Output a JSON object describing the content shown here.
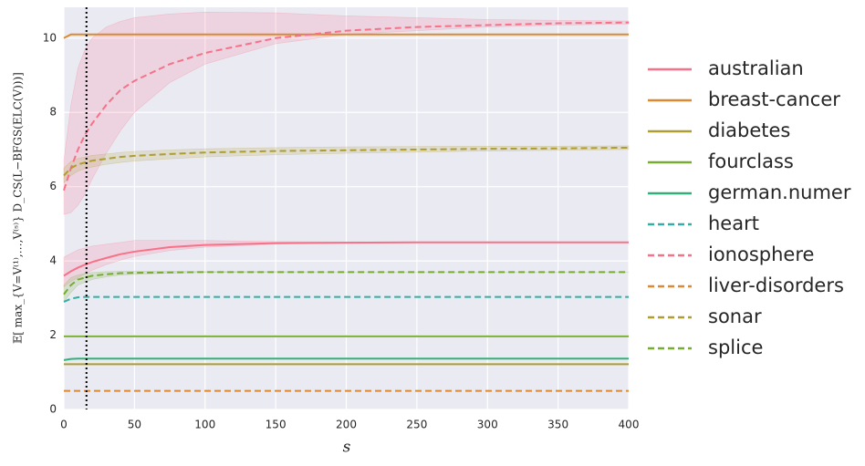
{
  "chart_data": {
    "type": "line",
    "x_label": "s",
    "y_label": "𝔼[ max_{V=V⁽¹⁾,…,V⁽ˢ⁾} D_CS(L−BFGS(ELC(V)))]",
    "x": [
      0,
      5,
      10,
      15,
      20,
      30,
      40,
      50,
      75,
      100,
      150,
      200,
      250,
      300,
      350,
      400
    ],
    "xlim": [
      0,
      400
    ],
    "xticks": [
      0,
      50,
      100,
      150,
      200,
      250,
      300,
      350,
      400
    ],
    "ylim": [
      0,
      10.83
    ],
    "yticks": [
      0,
      2,
      4,
      6,
      8,
      10
    ],
    "grid": true,
    "legend": "right",
    "vline": 16,
    "series": [
      {
        "name": "australian",
        "color": "#f77189",
        "dashed": false,
        "values": [
          3.6,
          3.72,
          3.82,
          3.9,
          3.97,
          4.08,
          4.18,
          4.25,
          4.37,
          4.43,
          4.48,
          4.49,
          4.5,
          4.5,
          4.5,
          4.5
        ],
        "lower": [
          3.3,
          3.45,
          3.55,
          3.65,
          3.75,
          3.9,
          4.02,
          4.12,
          4.28,
          4.37,
          4.45,
          4.48,
          4.49,
          4.5,
          4.5,
          4.5
        ],
        "upper": [
          4.1,
          4.2,
          4.3,
          4.35,
          4.4,
          4.45,
          4.5,
          4.55,
          4.55,
          4.55,
          4.52,
          4.51,
          4.51,
          4.5,
          4.5,
          4.5
        ]
      },
      {
        "name": "breast-cancer",
        "color": "#dc8932",
        "dashed": false,
        "values": [
          10.0,
          10.1,
          10.1,
          10.1,
          10.1,
          10.1,
          10.1,
          10.1,
          10.1,
          10.1,
          10.1,
          10.1,
          10.1,
          10.1,
          10.1,
          10.1
        ]
      },
      {
        "name": "diabetes",
        "color": "#ae9d31",
        "dashed": false,
        "values": [
          1.22,
          1.22,
          1.22,
          1.22,
          1.22,
          1.22,
          1.22,
          1.22,
          1.22,
          1.22,
          1.22,
          1.22,
          1.22,
          1.22,
          1.22,
          1.22
        ]
      },
      {
        "name": "fourclass",
        "color": "#77ab31",
        "dashed": false,
        "values": [
          1.97,
          1.97,
          1.97,
          1.97,
          1.97,
          1.97,
          1.97,
          1.97,
          1.97,
          1.97,
          1.97,
          1.97,
          1.97,
          1.97,
          1.97,
          1.97
        ]
      },
      {
        "name": "german.numer",
        "color": "#33b07a",
        "dashed": false,
        "values": [
          1.33,
          1.36,
          1.37,
          1.37,
          1.37,
          1.37,
          1.37,
          1.37,
          1.37,
          1.37,
          1.37,
          1.37,
          1.37,
          1.37,
          1.37,
          1.37
        ]
      },
      {
        "name": "heart",
        "color": "#36ada4",
        "dashed": true,
        "values": [
          2.9,
          2.98,
          3.02,
          3.03,
          3.03,
          3.03,
          3.03,
          3.03,
          3.03,
          3.03,
          3.03,
          3.03,
          3.03,
          3.03,
          3.03,
          3.03
        ]
      },
      {
        "name": "ionosphere",
        "color": "#f77189",
        "dashed": true,
        "values": [
          5.9,
          6.5,
          7.0,
          7.4,
          7.7,
          8.2,
          8.6,
          8.85,
          9.3,
          9.6,
          10.0,
          10.2,
          10.3,
          10.35,
          10.4,
          10.42
        ],
        "lower": [
          5.25,
          5.3,
          5.5,
          5.8,
          6.2,
          6.9,
          7.5,
          8.0,
          8.8,
          9.3,
          9.85,
          10.1,
          10.2,
          10.3,
          10.35,
          10.38
        ],
        "upper": [
          6.7,
          8.2,
          9.2,
          9.7,
          10.0,
          10.3,
          10.45,
          10.55,
          10.65,
          10.7,
          10.68,
          10.6,
          10.55,
          10.5,
          10.48,
          10.46
        ]
      },
      {
        "name": "liver-disorders",
        "color": "#dc8932",
        "dashed": true,
        "values": [
          0.5,
          0.5,
          0.5,
          0.5,
          0.5,
          0.5,
          0.5,
          0.5,
          0.5,
          0.5,
          0.5,
          0.5,
          0.5,
          0.5,
          0.5,
          0.5
        ]
      },
      {
        "name": "sonar",
        "color": "#ae9d31",
        "dashed": true,
        "values": [
          6.3,
          6.5,
          6.6,
          6.65,
          6.7,
          6.75,
          6.8,
          6.83,
          6.88,
          6.92,
          6.96,
          6.98,
          7.0,
          7.02,
          7.03,
          7.05
        ],
        "lower": [
          6.1,
          6.3,
          6.42,
          6.48,
          6.53,
          6.6,
          6.65,
          6.69,
          6.75,
          6.8,
          6.86,
          6.9,
          6.93,
          6.96,
          6.98,
          7.0
        ],
        "upper": [
          6.5,
          6.68,
          6.76,
          6.8,
          6.84,
          6.88,
          6.92,
          6.95,
          6.99,
          7.02,
          7.05,
          7.07,
          7.08,
          7.09,
          7.09,
          7.1
        ]
      },
      {
        "name": "splice",
        "color": "#77ab31",
        "dashed": true,
        "values": [
          3.1,
          3.35,
          3.5,
          3.55,
          3.6,
          3.64,
          3.67,
          3.68,
          3.69,
          3.7,
          3.7,
          3.7,
          3.7,
          3.7,
          3.7,
          3.7
        ],
        "lower": [
          2.9,
          3.15,
          3.35,
          3.43,
          3.5,
          3.57,
          3.62,
          3.64,
          3.67,
          3.69,
          3.7,
          3.7,
          3.7,
          3.7,
          3.7,
          3.7
        ],
        "upper": [
          3.35,
          3.55,
          3.62,
          3.66,
          3.69,
          3.71,
          3.72,
          3.72,
          3.72,
          3.71,
          3.71,
          3.7,
          3.7,
          3.7,
          3.7,
          3.7
        ]
      }
    ]
  }
}
